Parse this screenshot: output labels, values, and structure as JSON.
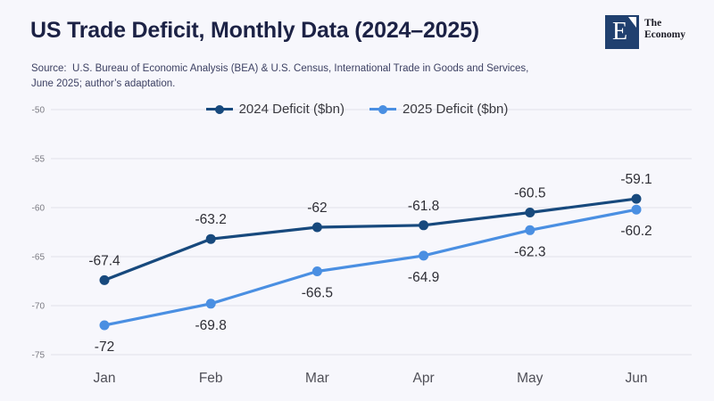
{
  "page": {
    "background": "#f7f7fc"
  },
  "header": {
    "title": "US Trade Deficit, Monthly Data (2024–2025)",
    "source": "Source:  U.S. Bureau of Economic Analysis (BEA) & U.S. Census, International Trade in Goods and Services,\nJune 2025; author’s adaptation.",
    "logo": {
      "letter": "E",
      "name_line1": "The",
      "name_line2": "Economy",
      "square_color": "#20406f"
    }
  },
  "chart_data": {
    "type": "line",
    "title": "US Trade Deficit, Monthly Data (2024–2025)",
    "categories": [
      "Jan",
      "Feb",
      "Mar",
      "Apr",
      "May",
      "Jun"
    ],
    "series": [
      {
        "name": "2024 Deficit ($bn)",
        "color": "#17497d",
        "values": [
          -67.4,
          -63.2,
          -62,
          -61.8,
          -60.5,
          -59.1
        ],
        "label_position": "above"
      },
      {
        "name": "2025 Deficit ($bn)",
        "color": "#4a8fe2",
        "values": [
          -72,
          -69.8,
          -66.5,
          -64.9,
          -62.3,
          -60.2
        ],
        "label_position": "below"
      }
    ],
    "ylim": [
      -75,
      -50
    ],
    "yticks": [
      -50,
      -55,
      -60,
      -65,
      -70,
      -75
    ],
    "xlabel": "",
    "ylabel": "",
    "grid": true,
    "legend_position": "top",
    "colors": {
      "gridline": "#e2e2ea",
      "y_tick_label": "#7a7a82",
      "x_tick_label": "#4f4f57",
      "data_label": "#2e2e35"
    }
  }
}
